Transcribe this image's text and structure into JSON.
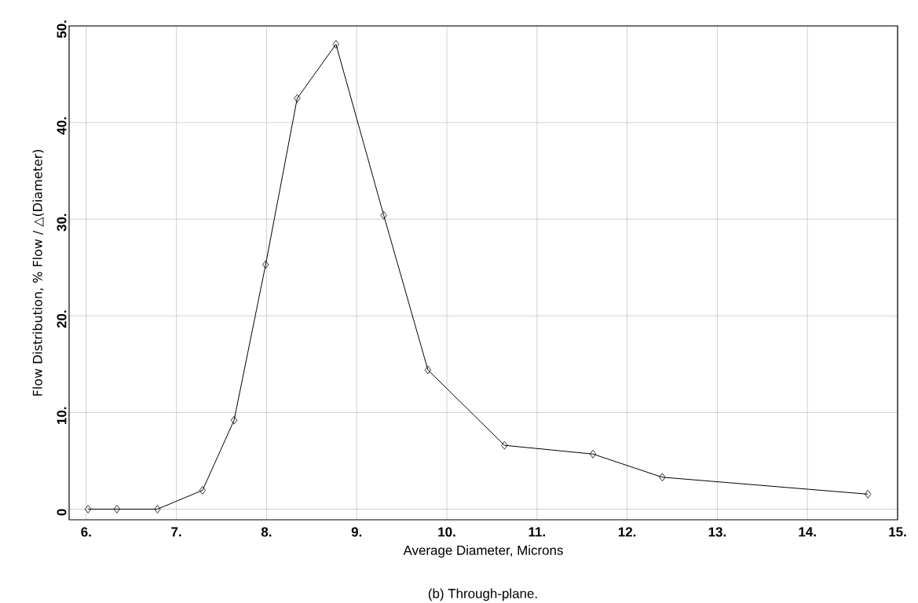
{
  "chart_data": {
    "type": "line",
    "xlabel": "Average Diameter, Microns",
    "ylabel": "Flow Distribution, % Flow / △(Diameter)",
    "annotations": [
      "(b) Through-plane."
    ],
    "x": [
      6.02,
      6.34,
      6.79,
      7.29,
      7.64,
      7.99,
      8.34,
      8.77,
      9.3,
      9.79,
      10.64,
      11.62,
      12.39,
      14.67
    ],
    "values": [
      0,
      0,
      0,
      1.95,
      9.2,
      25.3,
      42.5,
      48.1,
      30.4,
      14.4,
      6.6,
      5.7,
      3.3,
      1.55
    ],
    "color": "#000000",
    "marker": "diamond",
    "line_style": "solid",
    "grid": true,
    "xlim": [
      5.81,
      15.0
    ],
    "ylim": [
      -1.1,
      50
    ],
    "xticks": [
      {
        "value": 6,
        "label": "6."
      },
      {
        "value": 7,
        "label": "7."
      },
      {
        "value": 8,
        "label": "8."
      },
      {
        "value": 9,
        "label": "9."
      },
      {
        "value": 10,
        "label": "10."
      },
      {
        "value": 11,
        "label": "11."
      },
      {
        "value": 12,
        "label": "12."
      },
      {
        "value": 13,
        "label": "13."
      },
      {
        "value": 14,
        "label": "14."
      },
      {
        "value": 15,
        "label": "15."
      }
    ],
    "yticks": [
      0,
      {
        "value": 10,
        "label": "10."
      },
      {
        "value": 20,
        "label": "20."
      },
      {
        "value": 30,
        "label": "30."
      },
      {
        "value": 40,
        "label": "40."
      },
      {
        "value": 50,
        "label": "50."
      }
    ]
  }
}
